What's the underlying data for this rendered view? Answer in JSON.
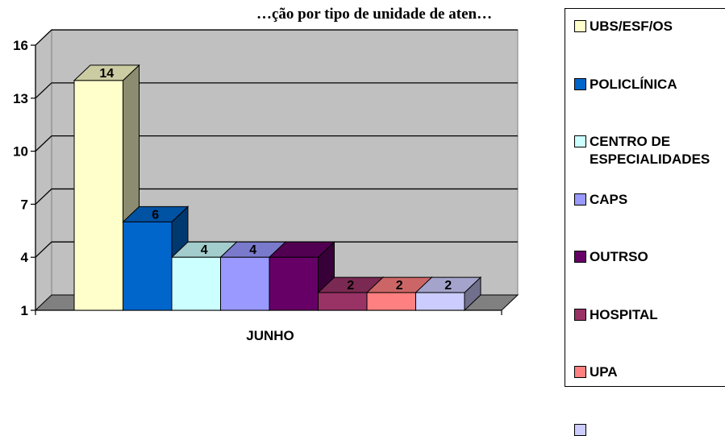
{
  "chart_data": {
    "type": "bar",
    "title": "…ção por tipo de unidade de aten…",
    "categories": [
      "JUNHO"
    ],
    "xlabel": "",
    "ylabel": "",
    "ylim": [
      1,
      16
    ],
    "yticks": [
      1,
      4,
      7,
      10,
      13,
      16
    ],
    "grid": true,
    "legend_position": "right",
    "series": [
      {
        "name": "UBS/ESF/OS",
        "values": [
          14
        ],
        "color": "#FFFFCC"
      },
      {
        "name": "POLICLÍNICA",
        "values": [
          6
        ],
        "color": "#0066CC"
      },
      {
        "name": "CENTRO DE\nESPECIALIDADES",
        "values": [
          4
        ],
        "color": "#CCFFFF"
      },
      {
        "name": "CAPS",
        "values": [
          4
        ],
        "color": "#9999FF"
      },
      {
        "name": "OUTRSO",
        "values": [
          4
        ],
        "color": "#660066"
      },
      {
        "name": "HOSPITAL",
        "values": [
          2
        ],
        "color": "#993366"
      },
      {
        "name": "UPA",
        "values": [
          2
        ],
        "color": "#FF8080"
      },
      {
        "name": "",
        "values": [
          2
        ],
        "color": "#CCCCFF"
      }
    ],
    "data_labels": [
      "14",
      "6",
      "4",
      "4",
      "",
      "2",
      "2",
      "2"
    ]
  }
}
